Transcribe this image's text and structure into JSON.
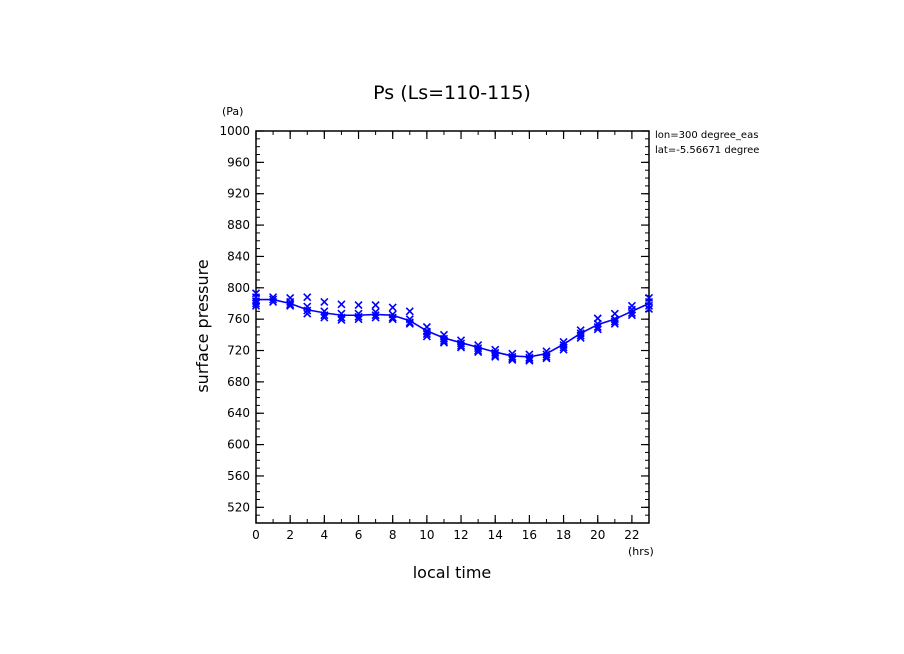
{
  "chart_data": {
    "type": "line",
    "title": "Ps (Ls=110-115)",
    "xlabel": "local time",
    "ylabel": "surface pressure",
    "x_unit": "(hrs)",
    "y_unit": "(Pa)",
    "annotations": [
      "lon=300 degree_eas",
      "lat=-5.56671 degree"
    ],
    "xlim": [
      0,
      23
    ],
    "ylim": [
      500,
      1000
    ],
    "x_ticks": [
      0,
      2,
      4,
      6,
      8,
      10,
      12,
      14,
      16,
      18,
      20,
      22
    ],
    "y_ticks": [
      520,
      560,
      600,
      640,
      680,
      720,
      760,
      800,
      840,
      880,
      920,
      960,
      1000
    ],
    "series": [
      {
        "role": "mean",
        "x": [
          0,
          1,
          2,
          3,
          4,
          5,
          6,
          7,
          8,
          9,
          10,
          11,
          12,
          13,
          14,
          15,
          16,
          17,
          18,
          19,
          20,
          21,
          22,
          23
        ],
        "values": [
          785,
          785,
          780,
          772,
          768,
          765,
          765,
          766,
          765,
          758,
          745,
          736,
          730,
          724,
          718,
          713,
          712,
          716,
          728,
          742,
          753,
          760,
          770,
          780
        ]
      }
    ],
    "scatter": {
      "x": [
        0,
        0,
        0,
        0,
        0,
        1,
        1,
        1,
        2,
        2,
        2,
        2,
        3,
        3,
        3,
        3,
        4,
        4,
        4,
        4,
        5,
        5,
        5,
        5,
        6,
        6,
        6,
        6,
        7,
        7,
        7,
        7,
        8,
        8,
        8,
        8,
        9,
        9,
        9,
        9,
        10,
        10,
        10,
        10,
        11,
        11,
        11,
        11,
        12,
        12,
        12,
        12,
        13,
        13,
        13,
        13,
        14,
        14,
        14,
        14,
        15,
        15,
        15,
        15,
        16,
        16,
        16,
        16,
        17,
        17,
        17,
        17,
        18,
        18,
        18,
        18,
        19,
        19,
        19,
        19,
        20,
        20,
        20,
        20,
        21,
        21,
        21,
        21,
        22,
        22,
        22,
        22,
        23,
        23,
        23,
        23
      ],
      "y": [
        793,
        788,
        783,
        780,
        777,
        788,
        785,
        782,
        787,
        782,
        779,
        777,
        788,
        776,
        771,
        767,
        782,
        770,
        765,
        762,
        779,
        767,
        762,
        759,
        778,
        767,
        763,
        760,
        778,
        769,
        765,
        762,
        775,
        766,
        762,
        760,
        770,
        760,
        756,
        754,
        750,
        744,
        741,
        738,
        740,
        735,
        732,
        730,
        733,
        729,
        726,
        724,
        727,
        723,
        720,
        718,
        721,
        717,
        714,
        712,
        716,
        712,
        710,
        708,
        715,
        711,
        709,
        707,
        719,
        715,
        712,
        710,
        731,
        727,
        724,
        721,
        746,
        742,
        739,
        736,
        761,
        754,
        750,
        747,
        767,
        760,
        757,
        754,
        777,
        772,
        768,
        765,
        787,
        782,
        777,
        773
      ]
    },
    "grid": false,
    "legend": "none",
    "colors": {
      "series": "#0000ff",
      "axes": "#000000"
    }
  }
}
